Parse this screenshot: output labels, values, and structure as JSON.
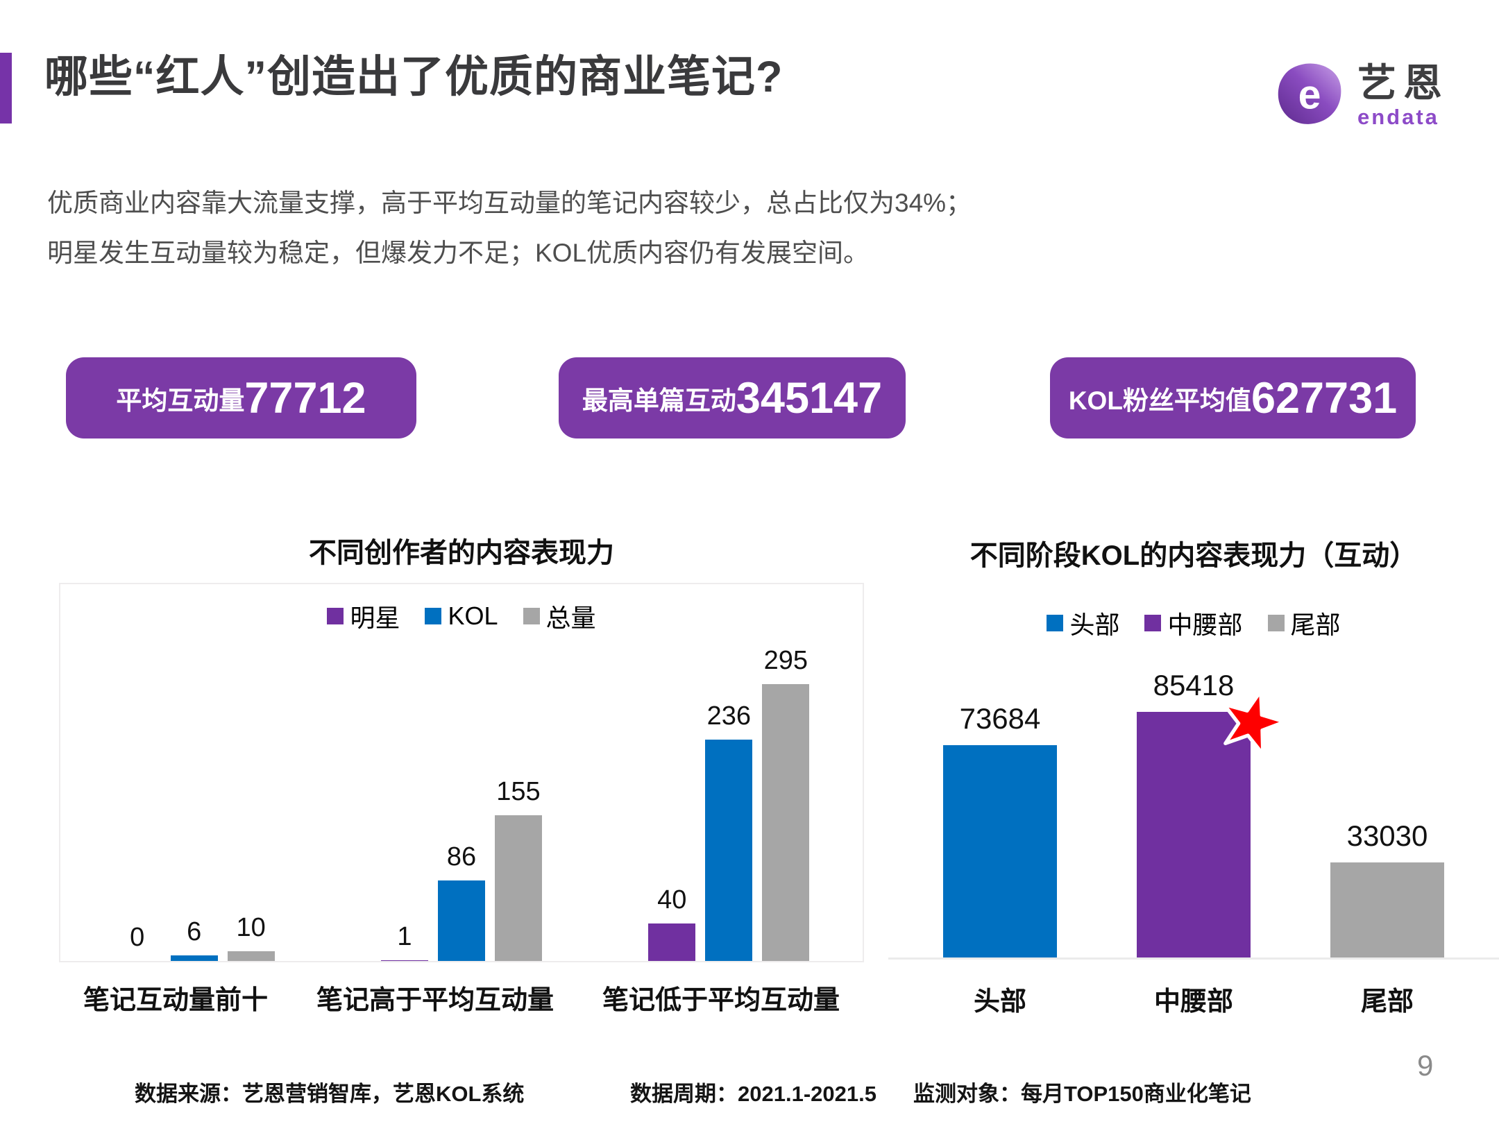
{
  "theme": {
    "accent": "#7633A8",
    "badge_bg": "#7B3AA6",
    "bar_blue": "#0070C0",
    "bar_purple": "#7030A0",
    "bar_gray": "#A6A6A6",
    "star_red": "#FE0000",
    "logo_purple": "#8D4BC8"
  },
  "header": {
    "title": "哪些“红人”创造出了优质的商业笔记?",
    "logo": {
      "brand_cn": "艺恩",
      "brand_en": "endata"
    }
  },
  "intro": {
    "line1": "优质商业内容靠大流量支撑，高于平均互动量的笔记内容较少，总占比仅为34%；",
    "line2": "明星发生互动量较为稳定，但爆发力不足；KOL优质内容仍有发展空间。"
  },
  "stat_badges": [
    {
      "label": "平均互动量",
      "value": "77712"
    },
    {
      "label": "最高单篇互动",
      "value": "345147"
    },
    {
      "label": "KOL粉丝平均值",
      "value": "627731"
    }
  ],
  "chart_data": [
    {
      "type": "bar",
      "title": "不同创作者的内容表现力",
      "categories": [
        "笔记互动量前十",
        "笔记高于平均互动量",
        "笔记低于平均互动量"
      ],
      "series": [
        {
          "name": "明星",
          "color": "#7030A0",
          "values": [
            0,
            1,
            40
          ]
        },
        {
          "name": "KOL",
          "color": "#0070C0",
          "values": [
            6,
            86,
            236
          ]
        },
        {
          "name": "总量",
          "color": "#A6A6A6",
          "values": [
            10,
            155,
            295
          ]
        }
      ],
      "ylim": [
        0,
        400
      ],
      "grid": false,
      "legend_position": "top",
      "data_labels": true
    },
    {
      "type": "bar",
      "title": "不同阶段KOL的内容表现力（互动）",
      "categories": [
        "头部",
        "中腰部",
        "尾部"
      ],
      "values": [
        73684,
        85418,
        33030
      ],
      "colors": [
        "#0070C0",
        "#7030A0",
        "#A6A6A6"
      ],
      "legend": [
        "头部",
        "中腰部",
        "尾部"
      ],
      "ylim": [
        0,
        100000
      ],
      "grid": false,
      "legend_position": "top",
      "data_labels": true,
      "annotation": {
        "type": "red-star",
        "category": "中腰部"
      }
    }
  ],
  "footer": {
    "source": "数据来源：艺恩营销智库，艺恩KOL系统",
    "period": "数据周期：2021.1-2021.5",
    "scope": "监测对象：每月TOP150商业化笔记",
    "page_number": "9"
  }
}
